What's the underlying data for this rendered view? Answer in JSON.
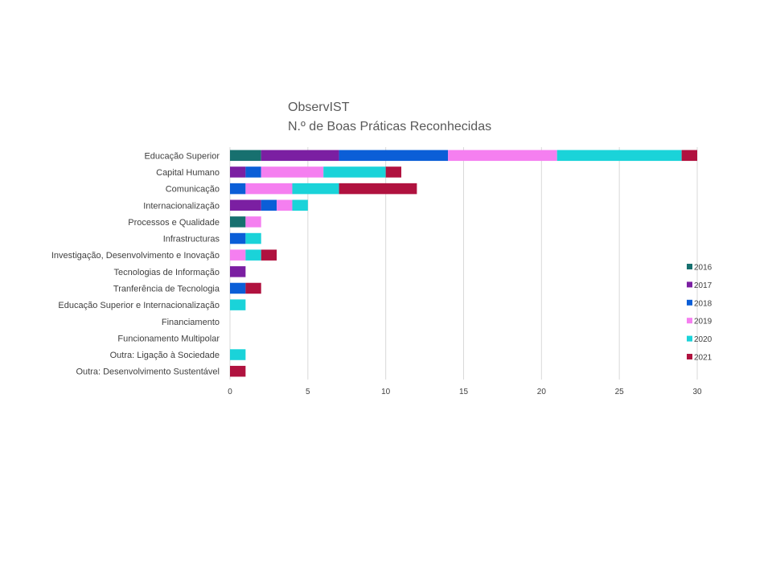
{
  "chart_data": {
    "type": "bar",
    "orientation": "horizontal",
    "stacked": true,
    "title": "ObservIST",
    "subtitle": "N.º de Boas Práticas Reconhecidas",
    "categories": [
      "Educação Superior",
      "Capital Humano",
      "Comunicação",
      "Internacionalização",
      "Processos e Qualidade",
      "Infrastructuras",
      "Investigação, Desenvolvimento e Inovação",
      "Tecnologias de Informação",
      "Tranferência de Tecnologia",
      "Educação Superior e Internacionalização",
      "Financiamento",
      "Funcionamento Multipolar",
      "Outra: Ligação à Sociedade",
      "Outra: Desenvolvimento Sustentável"
    ],
    "series": [
      {
        "name": "2016",
        "color": "#17706f",
        "values": [
          2,
          0,
          0,
          0,
          1,
          0,
          0,
          0,
          0,
          0,
          0,
          0,
          0,
          0
        ]
      },
      {
        "name": "2017",
        "color": "#7b1fa2",
        "values": [
          5,
          1,
          0,
          2,
          0,
          0,
          0,
          1,
          0,
          0,
          0,
          0,
          0,
          0
        ]
      },
      {
        "name": "2018",
        "color": "#0b5ed7",
        "values": [
          7,
          1,
          1,
          1,
          0,
          1,
          0,
          0,
          1,
          0,
          0,
          0,
          0,
          0
        ]
      },
      {
        "name": "2019",
        "color": "#f57ff0",
        "values": [
          7,
          4,
          3,
          1,
          1,
          0,
          1,
          0,
          0,
          0,
          0,
          0,
          0,
          0
        ]
      },
      {
        "name": "2020",
        "color": "#1ad3d9",
        "values": [
          8,
          4,
          3,
          1,
          0,
          1,
          1,
          0,
          0,
          1,
          0,
          0,
          1,
          0
        ]
      },
      {
        "name": "2021",
        "color": "#b0123f",
        "values": [
          1,
          1,
          5,
          0,
          0,
          0,
          1,
          0,
          1,
          0,
          0,
          0,
          0,
          1
        ]
      }
    ],
    "xlim": [
      0,
      30
    ],
    "xticks": [
      "0",
      "5",
      "10",
      "15",
      "20",
      "25",
      "30"
    ],
    "grid": true,
    "legend_position": "right"
  }
}
